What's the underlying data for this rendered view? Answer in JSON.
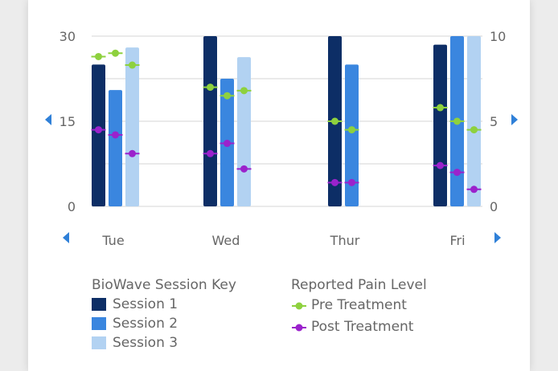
{
  "chart_data": {
    "type": "bar",
    "categories": [
      "Tue",
      "Wed",
      "Thur",
      "Fri"
    ],
    "series": [
      {
        "name": "Session 1",
        "color": "#0d2e66",
        "values": [
          25,
          30,
          30,
          28.5
        ]
      },
      {
        "name": "Session 2",
        "color": "#3a86df",
        "values": [
          20.5,
          22.5,
          25,
          30
        ]
      },
      {
        "name": "Session 3",
        "color": "#b2d2f2",
        "values": [
          28,
          26.3,
          null,
          30
        ]
      }
    ],
    "pain_series": [
      {
        "name": "Pre Treatment",
        "color": "#8ed13e",
        "values": [
          [
            8.8,
            9,
            8.3
          ],
          [
            7,
            6.5,
            6.8
          ],
          [
            5,
            4.5,
            null
          ],
          [
            5.8,
            5,
            4.5
          ]
        ]
      },
      {
        "name": "Post Treatment",
        "color": "#9b22cc",
        "values": [
          [
            4.5,
            4.2,
            3.1
          ],
          [
            3.1,
            3.7,
            2.2
          ],
          [
            1.4,
            1.4,
            null
          ],
          [
            2.4,
            2,
            1
          ]
        ]
      }
    ],
    "y_left": {
      "min": 0,
      "max": 30,
      "ticks": [
        0,
        15,
        30
      ]
    },
    "y_right": {
      "min": 0,
      "max": 10,
      "ticks": [
        0,
        5,
        10
      ]
    },
    "grid": true
  },
  "legend": {
    "sessions_title": "BioWave Session Key",
    "sessions": [
      "Session 1",
      "Session 2",
      "Session 3"
    ],
    "pain_title": "Reported Pain Level",
    "pain": [
      "Pre Treatment",
      "Post Treatment"
    ]
  },
  "nav": {
    "left_arrow": "◀",
    "right_arrow": "▶"
  },
  "colors": {
    "session_1": "#0d2e66",
    "session_2": "#3a86df",
    "session_3": "#b2d2f2",
    "pre": "#8ed13e",
    "post": "#9b22cc",
    "arrow": "#2f80d8"
  }
}
